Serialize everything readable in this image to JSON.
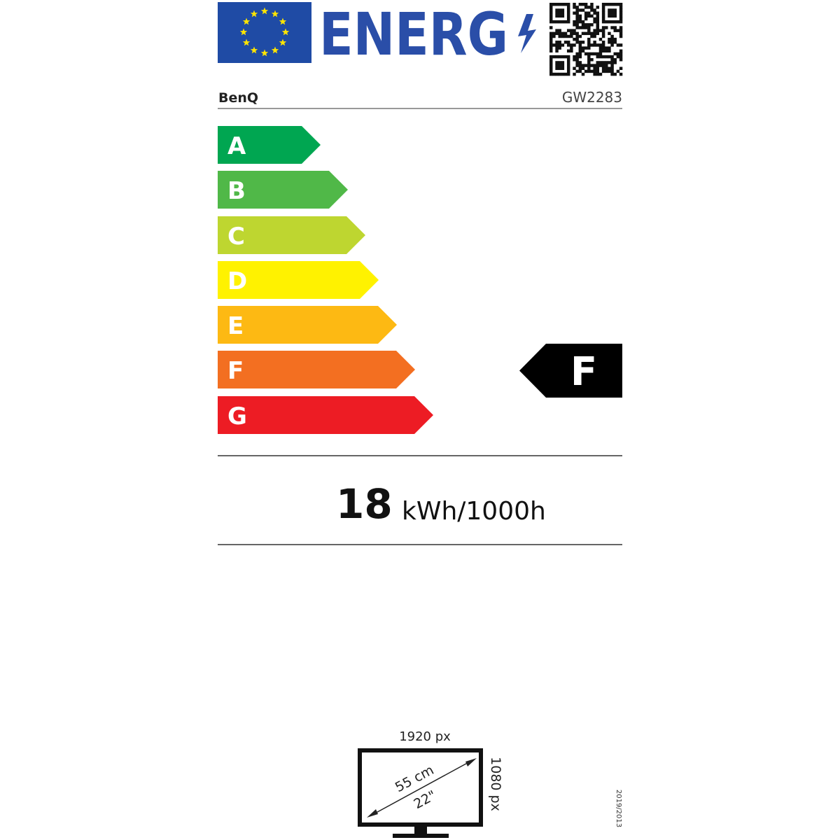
{
  "header": {
    "logo_text": "ENERG",
    "supplier": "BenQ",
    "model": "GW2283"
  },
  "scale": {
    "classes": [
      {
        "label": "A",
        "color": "#00a651"
      },
      {
        "label": "B",
        "color": "#50b848"
      },
      {
        "label": "C",
        "color": "#bed630"
      },
      {
        "label": "D",
        "color": "#fff200"
      },
      {
        "label": "E",
        "color": "#fdb913"
      },
      {
        "label": "F",
        "color": "#f36f21"
      },
      {
        "label": "G",
        "color": "#ed1c24"
      }
    ],
    "rating": "F"
  },
  "consumption": {
    "value": "18",
    "unit": "kWh/1000h"
  },
  "screen": {
    "width_px": "1920 px",
    "height_px": "1080 px",
    "diagonal_cm": "55 cm",
    "diagonal_in": "22\""
  },
  "regulation": "2019/2013",
  "colors": {
    "eu_blue": "#2a4ea8",
    "flag_blue": "#1f4ba5",
    "star": "#ffe500"
  }
}
